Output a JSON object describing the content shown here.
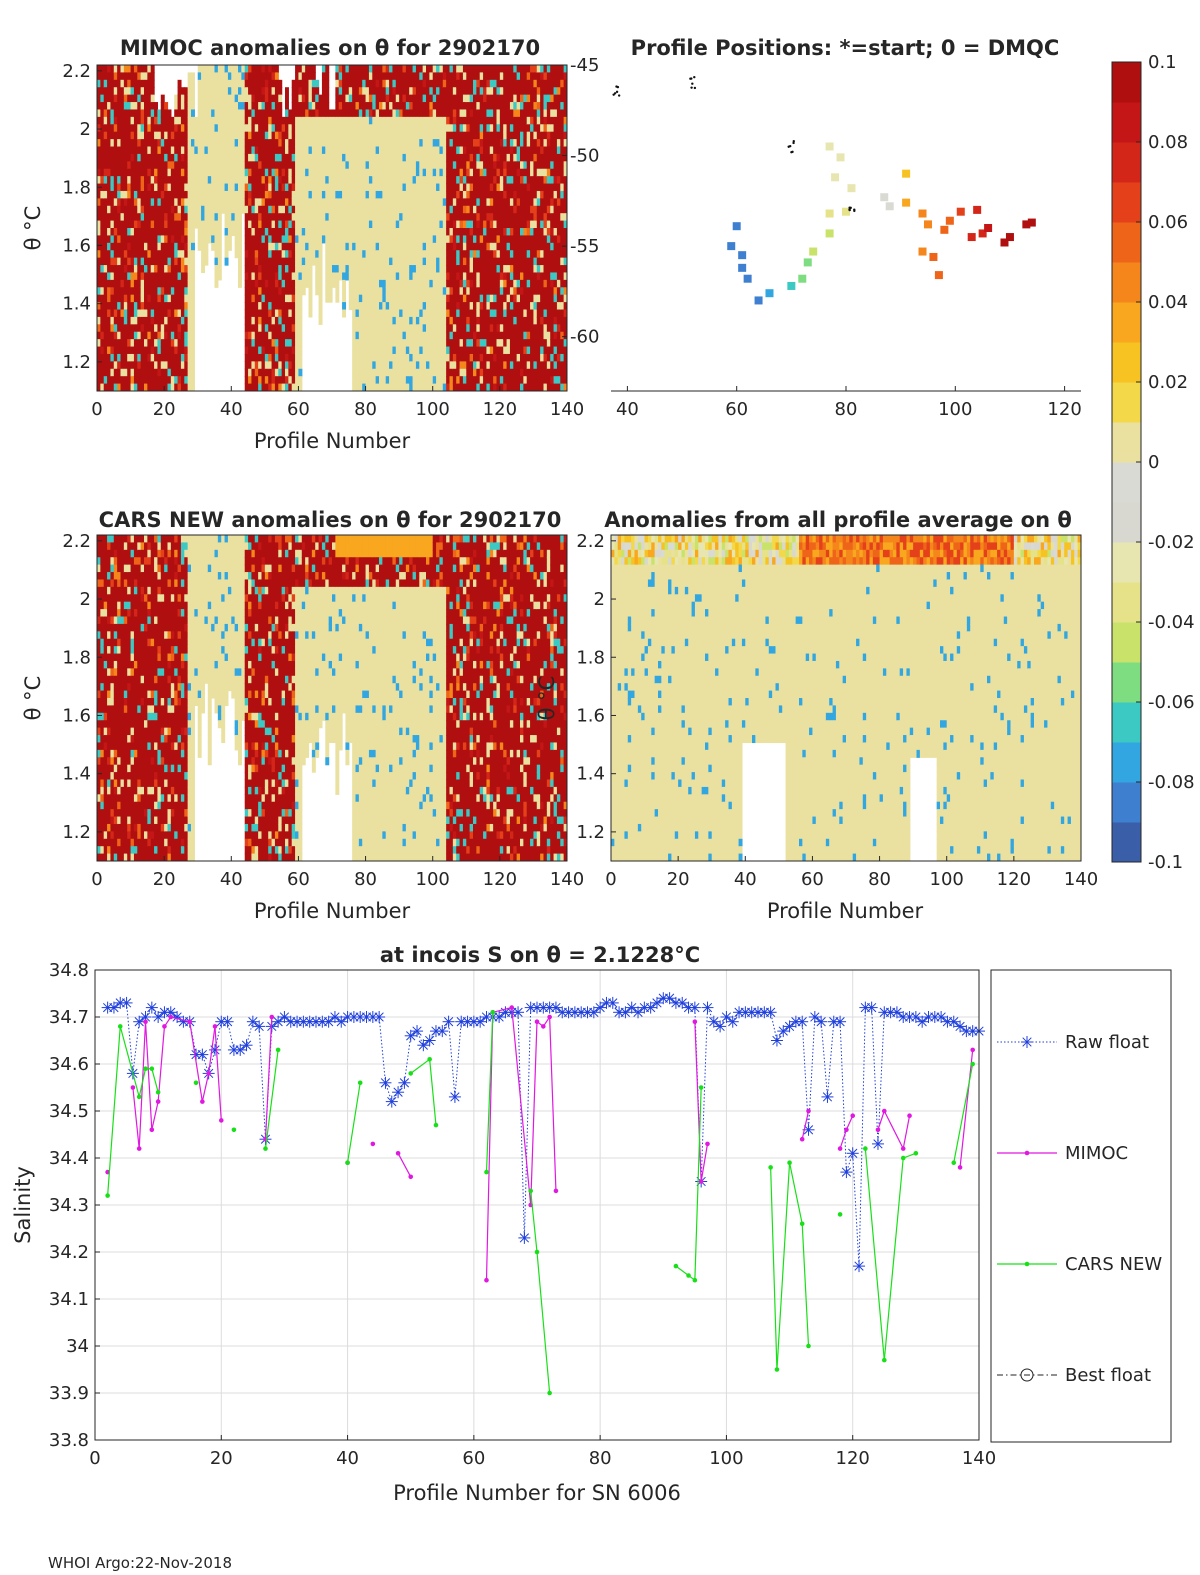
{
  "footer": "WHOI Argo:22-Nov-2018",
  "colorbar": {
    "ticks": [
      "0.1",
      "0.08",
      "0.06",
      "0.04",
      "0.02",
      "0",
      "-0.02",
      "-0.04",
      "-0.06",
      "-0.08",
      "-0.1"
    ],
    "colors": [
      "#3a5ea8",
      "#3f7fd0",
      "#32a6e0",
      "#3cc9c4",
      "#7ddd80",
      "#c9e26a",
      "#e6e28a",
      "#e8e6b0",
      "#d8d8d0",
      "#dadad4",
      "#eae1a0",
      "#f3d84a",
      "#f6c323",
      "#f8a71e",
      "#f4861c",
      "#ee6418",
      "#e4411a",
      "#d42618",
      "#c41616",
      "#b00f10"
    ]
  },
  "panels": {
    "mimoc": {
      "title": "MIMOC anomalies on θ  for 2902170",
      "xlabel": "Profile Number",
      "ylabel": "θ °C",
      "xticks": [
        "0",
        "20",
        "40",
        "60",
        "80",
        "100",
        "120",
        "140"
      ],
      "yticks": [
        "2.2",
        "2",
        "1.8",
        "1.6",
        "1.4",
        "1.2"
      ],
      "y2ticks": [
        "-45",
        "-50",
        "-55",
        "-60"
      ]
    },
    "positions": {
      "title": "Profile Positions: *=start; 0 = DMQC",
      "xticks": [
        "40",
        "60",
        "80",
        "100",
        "120"
      ]
    },
    "cars": {
      "title": "CARS NEW anomalies on θ for 2902170",
      "xlabel": "Profile Number",
      "ylabel": "θ °C",
      "xticks": [
        "0",
        "20",
        "40",
        "60",
        "80",
        "100",
        "120",
        "140"
      ],
      "yticks": [
        "2.2",
        "2",
        "1.8",
        "1.6",
        "1.4",
        "1.2"
      ]
    },
    "profavg": {
      "title": "Anomalies from all profile average on θ",
      "xlabel": "Profile Number",
      "ylabel": "θ °C",
      "xticks": [
        "0",
        "20",
        "40",
        "60",
        "80",
        "100",
        "120",
        "140"
      ],
      "yticks": [
        "2.2",
        "2",
        "1.8",
        "1.6",
        "1.4",
        "1.2"
      ]
    }
  },
  "chart_data": [
    {
      "type": "heatmap",
      "title": "MIMOC anomalies on θ  for 2902170",
      "xlabel": "Profile Number",
      "ylabel": "θ °C",
      "xlim": [
        0,
        140
      ],
      "ylim": [
        1.1,
        2.22
      ],
      "color_range": [
        -0.1,
        0.1
      ],
      "pattern": "mostly saturated positive (>0.1) with near-zero regions near profiles 25-40 and 60-100"
    },
    {
      "type": "scatter",
      "title": "Profile Positions: *=start; 0 = DMQC",
      "xlim": [
        37,
        123
      ],
      "ylim": [
        -63,
        -45
      ],
      "points": [
        {
          "lon": 60,
          "lat": -53.9,
          "anom": -0.09
        },
        {
          "lon": 59,
          "lat": -55.0,
          "anom": -0.09
        },
        {
          "lon": 61,
          "lat": -55.5,
          "anom": -0.09
        },
        {
          "lon": 61,
          "lat": -56.2,
          "anom": -0.09
        },
        {
          "lon": 62,
          "lat": -56.8,
          "anom": -0.085
        },
        {
          "lon": 64,
          "lat": -58.0,
          "anom": -0.085
        },
        {
          "lon": 66,
          "lat": -57.6,
          "anom": -0.08
        },
        {
          "lon": 70,
          "lat": -57.2,
          "anom": -0.07
        },
        {
          "lon": 72,
          "lat": -56.8,
          "anom": -0.06
        },
        {
          "lon": 73,
          "lat": -55.9,
          "anom": -0.055
        },
        {
          "lon": 74,
          "lat": -55.3,
          "anom": -0.05
        },
        {
          "lon": 77,
          "lat": -54.3,
          "anom": -0.045
        },
        {
          "lon": 77,
          "lat": -53.2,
          "anom": -0.04
        },
        {
          "lon": 80,
          "lat": -53.1,
          "anom": -0.035
        },
        {
          "lon": 78,
          "lat": -51.2,
          "anom": -0.03
        },
        {
          "lon": 79,
          "lat": -50.1,
          "anom": -0.03
        },
        {
          "lon": 81,
          "lat": -51.8,
          "anom": -0.025
        },
        {
          "lon": 77,
          "lat": -49.5,
          "anom": -0.03
        },
        {
          "lon": 87,
          "lat": -52.3,
          "anom": -0.01
        },
        {
          "lon": 88,
          "lat": -52.8,
          "anom": -0.005
        },
        {
          "lon": 91,
          "lat": -51.0,
          "anom": 0.02
        },
        {
          "lon": 91,
          "lat": -52.6,
          "anom": 0.03
        },
        {
          "lon": 94,
          "lat": -53.2,
          "anom": 0.04
        },
        {
          "lon": 95,
          "lat": -53.8,
          "anom": 0.045
        },
        {
          "lon": 94,
          "lat": -55.3,
          "anom": 0.045
        },
        {
          "lon": 96,
          "lat": -55.6,
          "anom": 0.05
        },
        {
          "lon": 97,
          "lat": -56.6,
          "anom": 0.05
        },
        {
          "lon": 98,
          "lat": -54.1,
          "anom": 0.055
        },
        {
          "lon": 101,
          "lat": -53.1,
          "anom": 0.065
        },
        {
          "lon": 99,
          "lat": -53.6,
          "anom": 0.06
        },
        {
          "lon": 103,
          "lat": -54.5,
          "anom": 0.07
        },
        {
          "lon": 105,
          "lat": -54.3,
          "anom": 0.075
        },
        {
          "lon": 104,
          "lat": -53.0,
          "anom": 0.07
        },
        {
          "lon": 106,
          "lat": -54.0,
          "anom": 0.08
        },
        {
          "lon": 109,
          "lat": -54.8,
          "anom": 0.09
        },
        {
          "lon": 110,
          "lat": -54.5,
          "anom": 0.09
        },
        {
          "lon": 113,
          "lat": -53.8,
          "anom": 0.1
        },
        {
          "lon": 114,
          "lat": -53.7,
          "anom": 0.1
        }
      ],
      "marker_clusters": [
        {
          "lon": 70,
          "lat": -49.5
        },
        {
          "lon": 52,
          "lat": -46.0
        },
        {
          "lon": 38,
          "lat": -46.5
        },
        {
          "lon": 81,
          "lat": -53.0
        }
      ]
    },
    {
      "type": "heatmap",
      "title": "CARS NEW anomalies on θ for 2902170",
      "xlabel": "Profile Number",
      "ylabel": "θ °C",
      "xlim": [
        0,
        140
      ],
      "ylim": [
        1.1,
        2.22
      ],
      "color_range": [
        -0.1,
        0.1
      ]
    },
    {
      "type": "heatmap",
      "title": "Anomalies from all profile average on θ",
      "xlabel": "Profile Number",
      "ylabel": "θ °C",
      "xlim": [
        0,
        140
      ],
      "ylim": [
        1.1,
        2.22
      ],
      "color_range": [
        -0.1,
        0.1
      ]
    },
    {
      "type": "line",
      "title": "at incois S on θ = 2.1228°C",
      "xlabel": "Profile Number for SN 6006",
      "ylabel": "Salinity",
      "xlim": [
        0,
        140
      ],
      "ylim": [
        33.8,
        34.8
      ],
      "xticks": [
        "0",
        "20",
        "40",
        "60",
        "80",
        "100",
        "120",
        "140"
      ],
      "yticks": [
        "34.8",
        "34.7",
        "34.6",
        "34.5",
        "34.4",
        "34.3",
        "34.2",
        "34.1",
        "34",
        "33.9",
        "33.8"
      ],
      "legend": [
        "Raw float",
        "MIMOC",
        "CARS NEW",
        "Best float"
      ],
      "series": [
        {
          "name": "Raw float",
          "color": "#1f3fdc",
          "style": "dotted-star",
          "x": [
            2,
            3,
            4,
            5,
            6,
            7,
            8,
            9,
            10,
            11,
            12,
            13,
            14,
            15,
            16,
            17,
            18,
            19,
            20,
            21,
            22,
            23,
            24,
            25,
            26,
            27,
            28,
            29,
            30,
            31,
            32,
            33,
            34,
            35,
            36,
            37,
            38,
            39,
            40,
            41,
            42,
            43,
            44,
            45,
            46,
            47,
            48,
            49,
            50,
            51,
            52,
            53,
            54,
            55,
            56,
            57,
            58,
            59,
            60,
            61,
            62,
            63,
            64,
            65,
            66,
            67,
            68,
            69,
            70,
            71,
            72,
            73,
            74,
            75,
            76,
            77,
            78,
            79,
            80,
            81,
            82,
            83,
            84,
            85,
            86,
            87,
            88,
            89,
            90,
            91,
            92,
            93,
            94,
            95,
            96,
            97,
            98,
            99,
            100,
            101,
            102,
            103,
            104,
            105,
            106,
            107,
            108,
            109,
            110,
            111,
            112,
            113,
            114,
            115,
            116,
            117,
            118,
            119,
            120,
            121,
            122,
            123,
            124,
            125,
            126,
            127,
            128,
            129,
            130,
            131,
            132,
            133,
            134,
            135,
            136,
            137,
            138,
            139,
            140
          ],
          "y": [
            34.72,
            34.72,
            34.73,
            34.73,
            34.58,
            34.69,
            34.7,
            34.72,
            34.7,
            34.71,
            34.71,
            34.7,
            34.69,
            34.69,
            34.62,
            34.62,
            34.58,
            34.63,
            34.69,
            34.69,
            34.63,
            34.63,
            34.64,
            34.69,
            34.68,
            34.44,
            34.68,
            34.69,
            34.7,
            34.69,
            34.69,
            34.69,
            34.69,
            34.69,
            34.69,
            34.69,
            34.7,
            34.69,
            34.7,
            34.7,
            34.7,
            34.7,
            34.7,
            34.7,
            34.56,
            34.52,
            34.54,
            34.56,
            34.66,
            34.67,
            34.64,
            34.65,
            34.67,
            34.67,
            34.69,
            34.53,
            34.69,
            34.69,
            34.69,
            34.69,
            34.7,
            34.7,
            34.7,
            34.71,
            34.71,
            34.71,
            34.23,
            34.72,
            34.72,
            34.72,
            34.72,
            34.72,
            34.71,
            34.71,
            34.71,
            34.71,
            34.71,
            34.71,
            34.72,
            34.73,
            34.73,
            34.71,
            34.71,
            34.72,
            34.71,
            34.72,
            34.72,
            34.73,
            34.74,
            34.74,
            34.73,
            34.73,
            34.72,
            34.72,
            34.35,
            34.72,
            34.69,
            34.68,
            34.7,
            34.69,
            34.71,
            34.71,
            34.71,
            34.71,
            34.71,
            34.71,
            34.65,
            34.67,
            34.68,
            34.69,
            34.69,
            34.46,
            34.7,
            34.69,
            34.53,
            34.69,
            34.69,
            34.37,
            34.41,
            34.17,
            34.72,
            34.72,
            34.43,
            34.71,
            34.71,
            34.71,
            34.7,
            34.7,
            34.7,
            34.69,
            34.7,
            34.7,
            34.7,
            34.69,
            34.69,
            34.68,
            34.67,
            34.67,
            34.67
          ]
        },
        {
          "name": "MIMOC",
          "color": "#e018e0",
          "style": "line-dot",
          "x": [
            2,
            6,
            7,
            8,
            9,
            10,
            11,
            12,
            15,
            17,
            18,
            19,
            20,
            27,
            28,
            40,
            44,
            48,
            50,
            62,
            63,
            66,
            69,
            70,
            71,
            72,
            73,
            95,
            96,
            97,
            112,
            113,
            118,
            119,
            120,
            124,
            125,
            128,
            129,
            137,
            139
          ],
          "y": [
            34.37,
            34.55,
            34.42,
            34.69,
            34.46,
            34.52,
            34.68,
            34.7,
            34.69,
            34.52,
            34.58,
            34.68,
            34.48,
            34.44,
            34.7,
            34.39,
            34.43,
            34.41,
            34.36,
            34.14,
            34.71,
            34.72,
            34.3,
            34.69,
            34.68,
            34.7,
            34.33,
            34.69,
            34.35,
            34.43,
            34.44,
            34.5,
            34.42,
            34.46,
            34.49,
            34.46,
            34.5,
            34.42,
            34.49,
            34.38,
            34.63
          ]
        },
        {
          "name": "CARS NEW",
          "color": "#18e018",
          "style": "line-dot",
          "x": [
            2,
            4,
            7,
            8,
            9,
            10,
            16,
            22,
            27,
            29,
            40,
            42,
            50,
            53,
            54,
            62,
            63,
            69,
            70,
            72,
            92,
            94,
            95,
            96,
            107,
            108,
            110,
            112,
            113,
            118,
            122,
            125,
            128,
            130,
            136,
            139
          ],
          "y": [
            34.32,
            34.68,
            34.53,
            34.59,
            34.59,
            34.54,
            34.56,
            34.46,
            34.42,
            34.63,
            34.39,
            34.56,
            34.58,
            34.61,
            34.47,
            34.37,
            34.71,
            34.33,
            34.2,
            33.9,
            34.17,
            34.15,
            34.14,
            34.55,
            34.38,
            33.95,
            34.39,
            34.26,
            34.0,
            34.28,
            34.42,
            33.97,
            34.4,
            34.41,
            34.39,
            34.6
          ]
        }
      ]
    }
  ]
}
